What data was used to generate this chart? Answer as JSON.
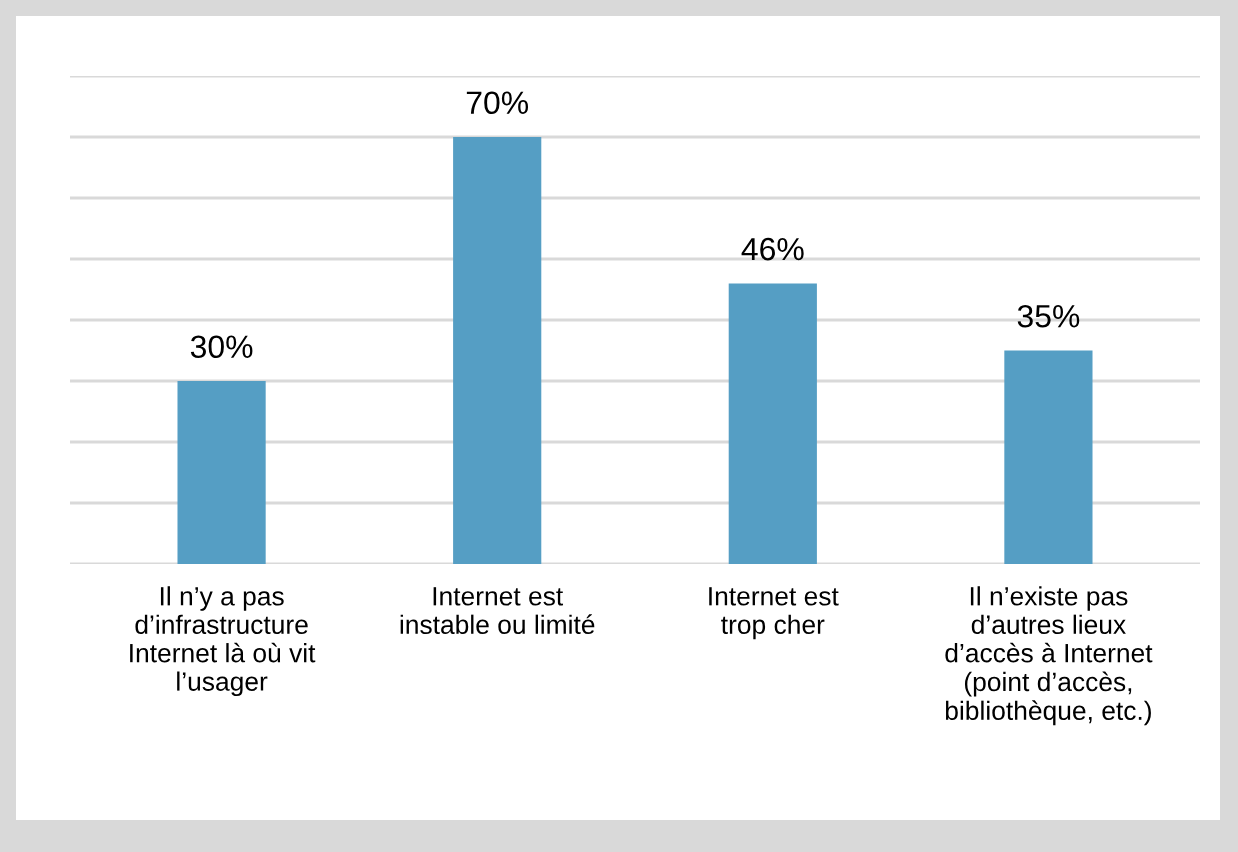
{
  "chart_data": {
    "type": "bar",
    "categories": [
      "Il n’y a pas\nd’infrastructure\nInternet là où vit\nl’usager",
      "Internet est\ninstable ou limité",
      "Internet est\ntrop cher",
      "Il n’existe pas\nd’autres lieux\nd’accès à Internet\n(point d’accès,\nbibliothèque, etc.)"
    ],
    "values": [
      30,
      70,
      46,
      35
    ],
    "value_labels": [
      "30%",
      "70%",
      "46%",
      "35%"
    ],
    "color": "#559ec4",
    "ylim": [
      0,
      80
    ],
    "yticks": [
      {
        "value": 0,
        "label": null
      },
      {
        "value": 10,
        "label": null
      },
      {
        "value": 20,
        "label": null
      },
      {
        "value": 30,
        "label": null
      },
      {
        "value": 40,
        "label": null
      },
      {
        "value": 50,
        "label": null
      },
      {
        "value": 60,
        "label": null
      },
      {
        "value": 70,
        "label": null
      },
      {
        "value": 80,
        "label": null
      }
    ],
    "grid": "y",
    "tick_labels": "x"
  }
}
